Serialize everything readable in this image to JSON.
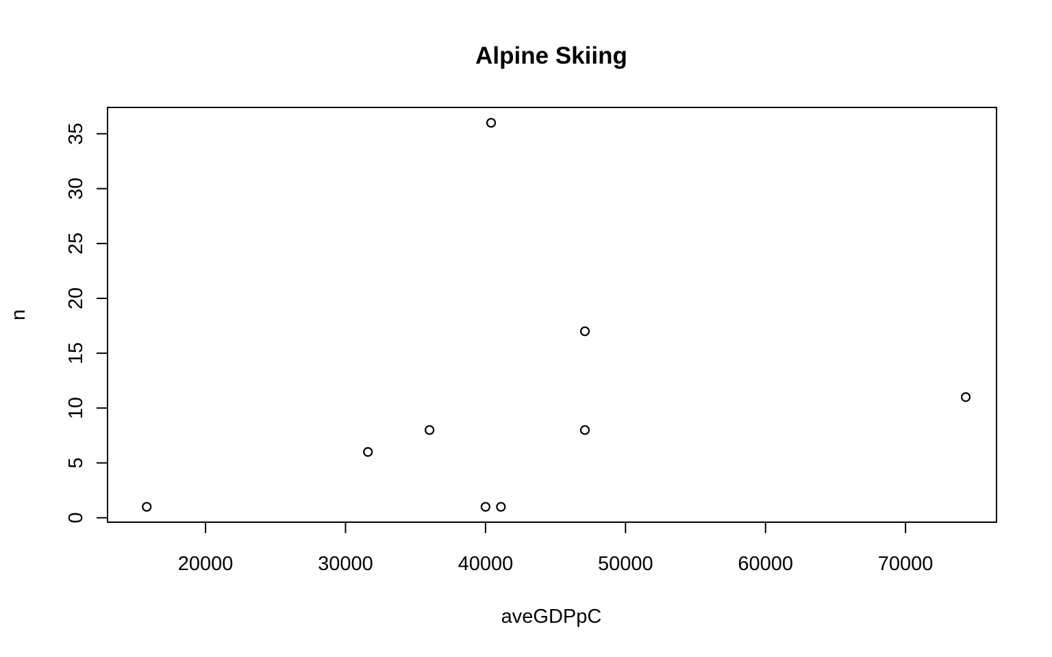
{
  "chart_data": {
    "type": "scatter",
    "title": "Alpine Skiing",
    "xlabel": "aveGDPpC",
    "ylabel": "n",
    "xlim": [
      13000,
      76500
    ],
    "ylim": [
      -0.4,
      37.4
    ],
    "x_ticks": [
      20000,
      30000,
      40000,
      50000,
      60000,
      70000
    ],
    "y_ticks": [
      0,
      5,
      10,
      15,
      20,
      25,
      30,
      35
    ],
    "grid": false,
    "legend": "none",
    "marker": "open-circle",
    "points": [
      {
        "x": 15800,
        "y": 1
      },
      {
        "x": 31600,
        "y": 6
      },
      {
        "x": 36000,
        "y": 8
      },
      {
        "x": 40000,
        "y": 1
      },
      {
        "x": 40400,
        "y": 36
      },
      {
        "x": 41100,
        "y": 1
      },
      {
        "x": 47100,
        "y": 17
      },
      {
        "x": 47100,
        "y": 8
      },
      {
        "x": 74300,
        "y": 11
      }
    ]
  }
}
